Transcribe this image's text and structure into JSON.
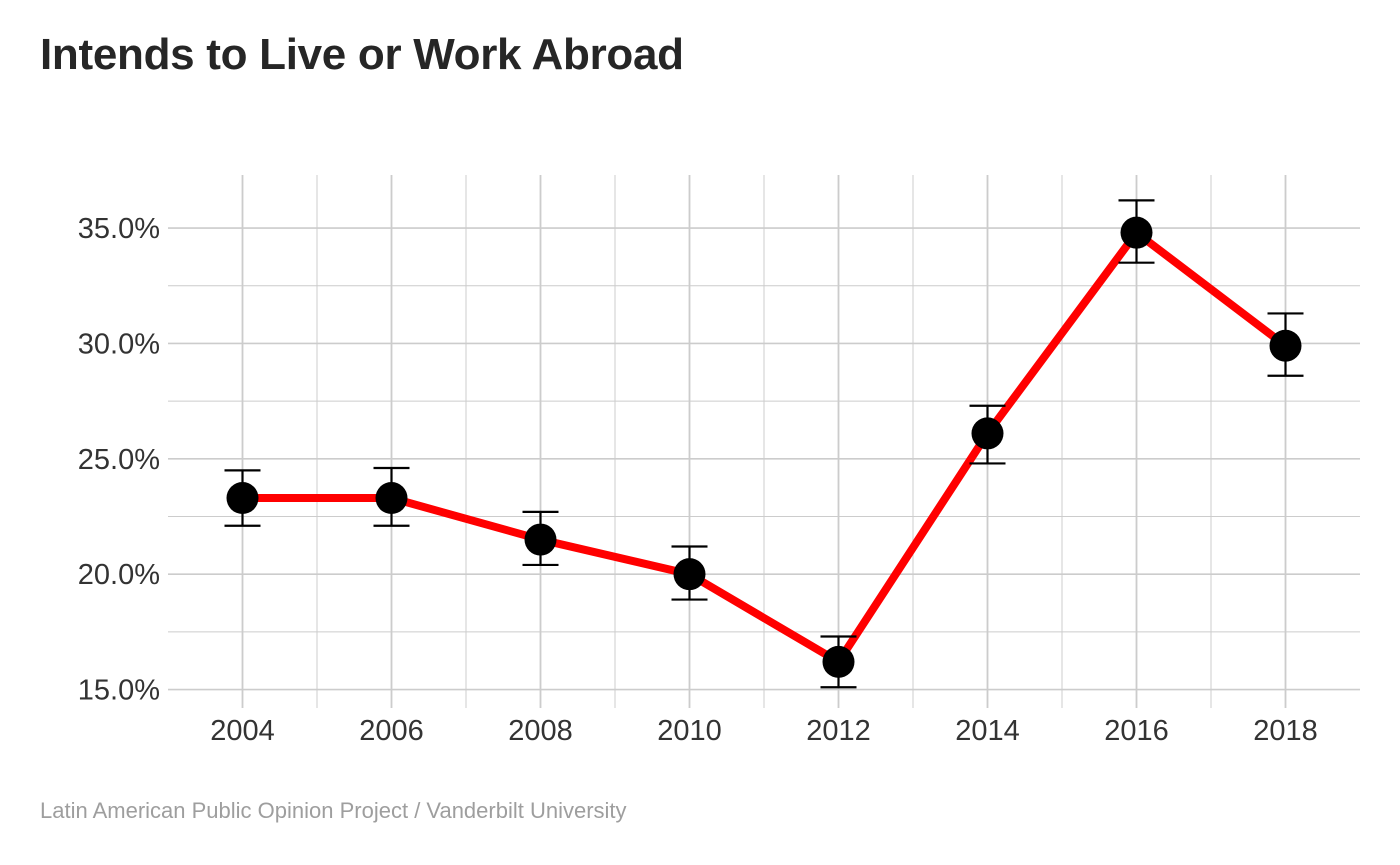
{
  "chart_data": {
    "type": "line",
    "title": "Intends to Live or Work Abroad",
    "caption": "Latin American Public Opinion Project / Vanderbilt University",
    "xlabel": "",
    "ylabel": "",
    "x": [
      2004,
      2006,
      2008,
      2010,
      2012,
      2014,
      2016,
      2018
    ],
    "series": [
      {
        "values": [
          23.3,
          23.3,
          21.5,
          20.0,
          16.2,
          26.1,
          34.8,
          29.9
        ],
        "error_low": [
          22.1,
          22.1,
          20.4,
          18.9,
          15.1,
          24.8,
          33.5,
          28.6
        ],
        "error_high": [
          24.5,
          24.6,
          22.7,
          21.2,
          17.3,
          27.3,
          36.2,
          31.3
        ]
      }
    ],
    "x_ticks": [
      "2004",
      "2006",
      "2008",
      "2010",
      "2012",
      "2014",
      "2016",
      "2018"
    ],
    "y_ticks": [
      15,
      20,
      25,
      30,
      35
    ],
    "y_tick_labels": [
      "15.0%",
      "20.0%",
      "25.0%",
      "30.0%",
      "35.0%"
    ],
    "xlim": [
      2003.0,
      2019.0
    ],
    "ylim": [
      14.2,
      37.3
    ],
    "grid": true,
    "colors": {
      "line": "#ff0000",
      "marker": "#000000",
      "error_bar": "#000000",
      "grid": "#cccccc"
    }
  }
}
